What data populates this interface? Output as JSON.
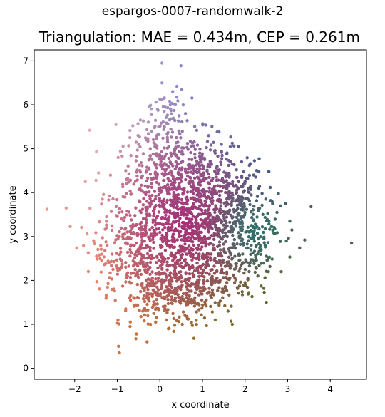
{
  "suptitle": "espargos-0007-randomwalk-2",
  "chart_data": {
    "type": "scatter",
    "title": "Triangulation: MAE = 0.434m, CEP = 0.261m",
    "xlabel": "x coordinate",
    "ylabel": "y coordinate",
    "xlim": [
      -2.95,
      4.85
    ],
    "ylim": [
      -0.25,
      7.25
    ],
    "xticks": [
      -2,
      -1,
      0,
      1,
      2,
      3,
      4
    ],
    "yticks": [
      0,
      1,
      2,
      3,
      4,
      5,
      6,
      7
    ],
    "xtick_labels": [
      "−2",
      "−1",
      "0",
      "1",
      "2",
      "3",
      "4"
    ],
    "ytick_labels": [
      "0",
      "1",
      "2",
      "3",
      "4",
      "5",
      "6",
      "7"
    ],
    "grid": false,
    "legend": "none",
    "colormap": "position-coded (x,y → color)",
    "points": [
      [
        -2.65,
        3.62
      ],
      [
        -2.2,
        3.65
      ],
      [
        -1.65,
        5.42
      ],
      [
        3.55,
        3.68
      ],
      [
        4.5,
        2.85
      ],
      [
        3.1,
        3.15
      ],
      [
        3.4,
        2.92
      ],
      [
        -0.97,
        0.5
      ],
      [
        -0.95,
        0.35
      ],
      [
        -0.3,
        0.6
      ],
      [
        0.05,
        6.95
      ],
      [
        0.3,
        6.3
      ],
      [
        0.4,
        6.42
      ],
      [
        0.8,
        0.68
      ],
      [
        1.7,
        1.0
      ],
      [
        2.5,
        1.5
      ],
      [
        2.95,
        3.75
      ],
      [
        3.05,
        3.35
      ],
      [
        -1.75,
        4.25
      ],
      [
        -1.5,
        4.28
      ],
      [
        -1.35,
        3.85
      ],
      [
        -1.25,
        3.2
      ],
      [
        -1.2,
        2.4
      ],
      [
        -1.1,
        2.25
      ],
      [
        -0.8,
        1.35
      ],
      [
        -0.7,
        0.95
      ],
      [
        -0.55,
        0.78
      ],
      [
        0.1,
        5.85
      ],
      [
        0.45,
        5.75
      ],
      [
        0.6,
        5.8
      ],
      [
        -0.2,
        5.9
      ],
      [
        1.3,
        4.9
      ],
      [
        1.7,
        4.65
      ],
      [
        2.1,
        4.62
      ],
      [
        2.2,
        4.4
      ],
      [
        2.4,
        3.98
      ],
      [
        2.6,
        3.82
      ],
      [
        2.75,
        3.55
      ],
      [
        2.5,
        2.55
      ],
      [
        2.3,
        2.1
      ],
      [
        2.0,
        1.95
      ],
      [
        1.6,
        1.3
      ],
      [
        1.3,
        1.1
      ],
      [
        0.2,
        0.9
      ],
      [
        -0.1,
        1.05
      ],
      [
        -0.4,
        1.3
      ],
      [
        0.7,
        2.05
      ],
      [
        1.0,
        2.5
      ],
      [
        1.5,
        3.0
      ],
      [
        0.5,
        3.5
      ],
      [
        -0.3,
        3.8
      ],
      [
        -0.8,
        4.5
      ],
      [
        -0.5,
        5.1
      ],
      [
        0.2,
        4.6
      ],
      [
        0.9,
        4.0
      ],
      [
        1.8,
        3.6
      ],
      [
        2.1,
        3.1
      ],
      [
        1.2,
        3.8
      ],
      [
        0.3,
        3.0
      ],
      [
        -0.6,
        2.8
      ],
      [
        -0.9,
        3.4
      ],
      [
        0.8,
        2.8
      ],
      [
        1.6,
        2.4
      ]
    ]
  }
}
